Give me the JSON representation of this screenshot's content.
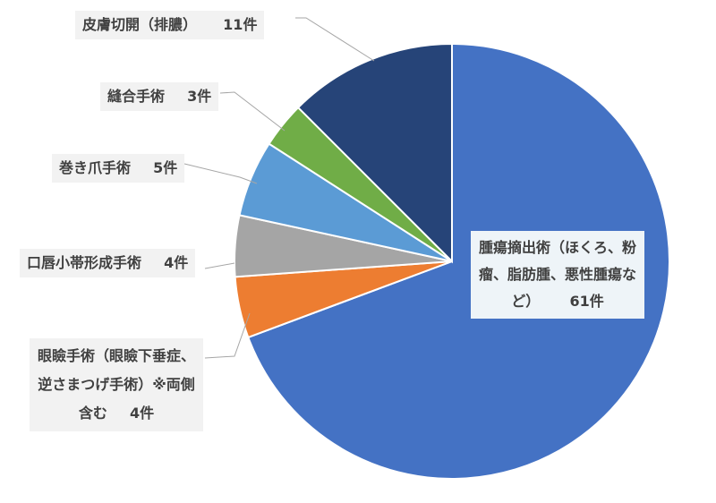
{
  "chart_data": {
    "type": "pie",
    "title": "",
    "unit": "件",
    "start_angle_deg": 0,
    "direction": "clockwise",
    "slices": [
      {
        "name": "腫瘍摘出術（ほくろ、粉瘤、脂肪腫、悪性腫瘍など）",
        "value": 61,
        "value_label": "61件",
        "color": "#4472c4"
      },
      {
        "name": "眼瞼手術（眼瞼下垂症、逆さまつげ手術）※両側含む",
        "value": 4,
        "value_label": "4件",
        "color": "#ed7d31"
      },
      {
        "name": "口唇小帯形成手術",
        "value": 4,
        "value_label": "4件",
        "color": "#a5a5a5"
      },
      {
        "name": "巻き爪手術",
        "value": 5,
        "value_label": "5件",
        "color": "#5b9bd5"
      },
      {
        "name": "縫合手術",
        "value": 3,
        "value_label": "3件",
        "color": "#70ad47"
      },
      {
        "name": "皮膚切開（排膿）",
        "value": 11,
        "value_label": "11件",
        "color": "#264478"
      }
    ]
  }
}
